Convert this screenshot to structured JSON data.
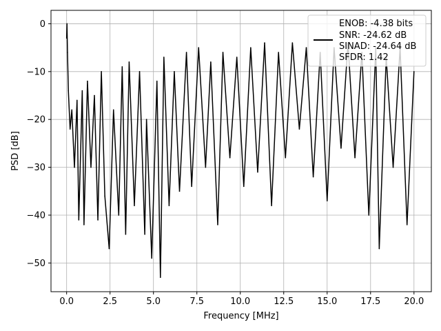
{
  "chart_data": {
    "type": "line",
    "title": "",
    "xlabel": "Frequency [MHz]",
    "ylabel": "PSD [dB]",
    "xlim": [
      -0.9,
      21.0
    ],
    "ylim": [
      -56,
      2.8
    ],
    "xticks": [
      0.0,
      2.5,
      5.0,
      7.5,
      10.0,
      12.5,
      15.0,
      17.5,
      20.0
    ],
    "xtick_labels": [
      "0.0",
      "2.5",
      "5.0",
      "7.5",
      "10.0",
      "12.5",
      "15.0",
      "17.5",
      "20.0"
    ],
    "yticks": [
      0,
      -10,
      -20,
      -30,
      -40,
      -50
    ],
    "ytick_labels": [
      "0",
      "−10",
      "−20",
      "−30",
      "−40",
      "−50"
    ],
    "grid": true,
    "legend_position": "top-right",
    "colors": {
      "line": "#000000",
      "grid": "#b0b0b0"
    },
    "series": [
      {
        "x": [
          0.0,
          0.02,
          0.05,
          0.1,
          0.2,
          0.3,
          0.45,
          0.6,
          0.7,
          0.9,
          1.0,
          1.2,
          1.4,
          1.6,
          1.8,
          2.0,
          2.2,
          2.45,
          2.7,
          3.0,
          3.2,
          3.4,
          3.6,
          3.9,
          4.2,
          4.5,
          4.6,
          4.9,
          5.2,
          5.4,
          5.6,
          5.9,
          6.2,
          6.5,
          6.9,
          7.2,
          7.6,
          8.0,
          8.3,
          8.7,
          9.0,
          9.4,
          9.8,
          10.2,
          10.6,
          11.0,
          11.4,
          11.8,
          12.2,
          12.6,
          13.0,
          13.4,
          13.8,
          14.2,
          14.6,
          15.0,
          15.4,
          15.8,
          16.2,
          16.6,
          17.0,
          17.4,
          17.8,
          18.0,
          18.4,
          18.8,
          19.2,
          19.6,
          20.0
        ],
        "y": [
          -3,
          0,
          -6,
          -14,
          -22,
          -18,
          -30,
          -16,
          -41,
          -14,
          -42,
          -12,
          -30,
          -15,
          -41,
          -10,
          -36,
          -47,
          -18,
          -40,
          -9,
          -44,
          -8,
          -38,
          -10,
          -44,
          -20,
          -49,
          -12,
          -53,
          -7,
          -38,
          -10,
          -35,
          -6,
          -34,
          -5,
          -30,
          -8,
          -42,
          -6,
          -28,
          -7,
          -34,
          -5,
          -31,
          -4,
          -38,
          -6,
          -28,
          -4,
          -22,
          -5,
          -32,
          -6,
          -37,
          -5,
          -26,
          -4,
          -28,
          -6,
          -40,
          -5,
          -47,
          -7,
          -30,
          -5,
          -42,
          -10
        ]
      }
    ],
    "annotations": [
      {
        "text": "ENOB: -4.38 bits"
      },
      {
        "text": "SNR: -24.62 dB"
      },
      {
        "text": "SINAD: -24.64 dB"
      },
      {
        "text": "SFDR: 1.42"
      }
    ]
  }
}
